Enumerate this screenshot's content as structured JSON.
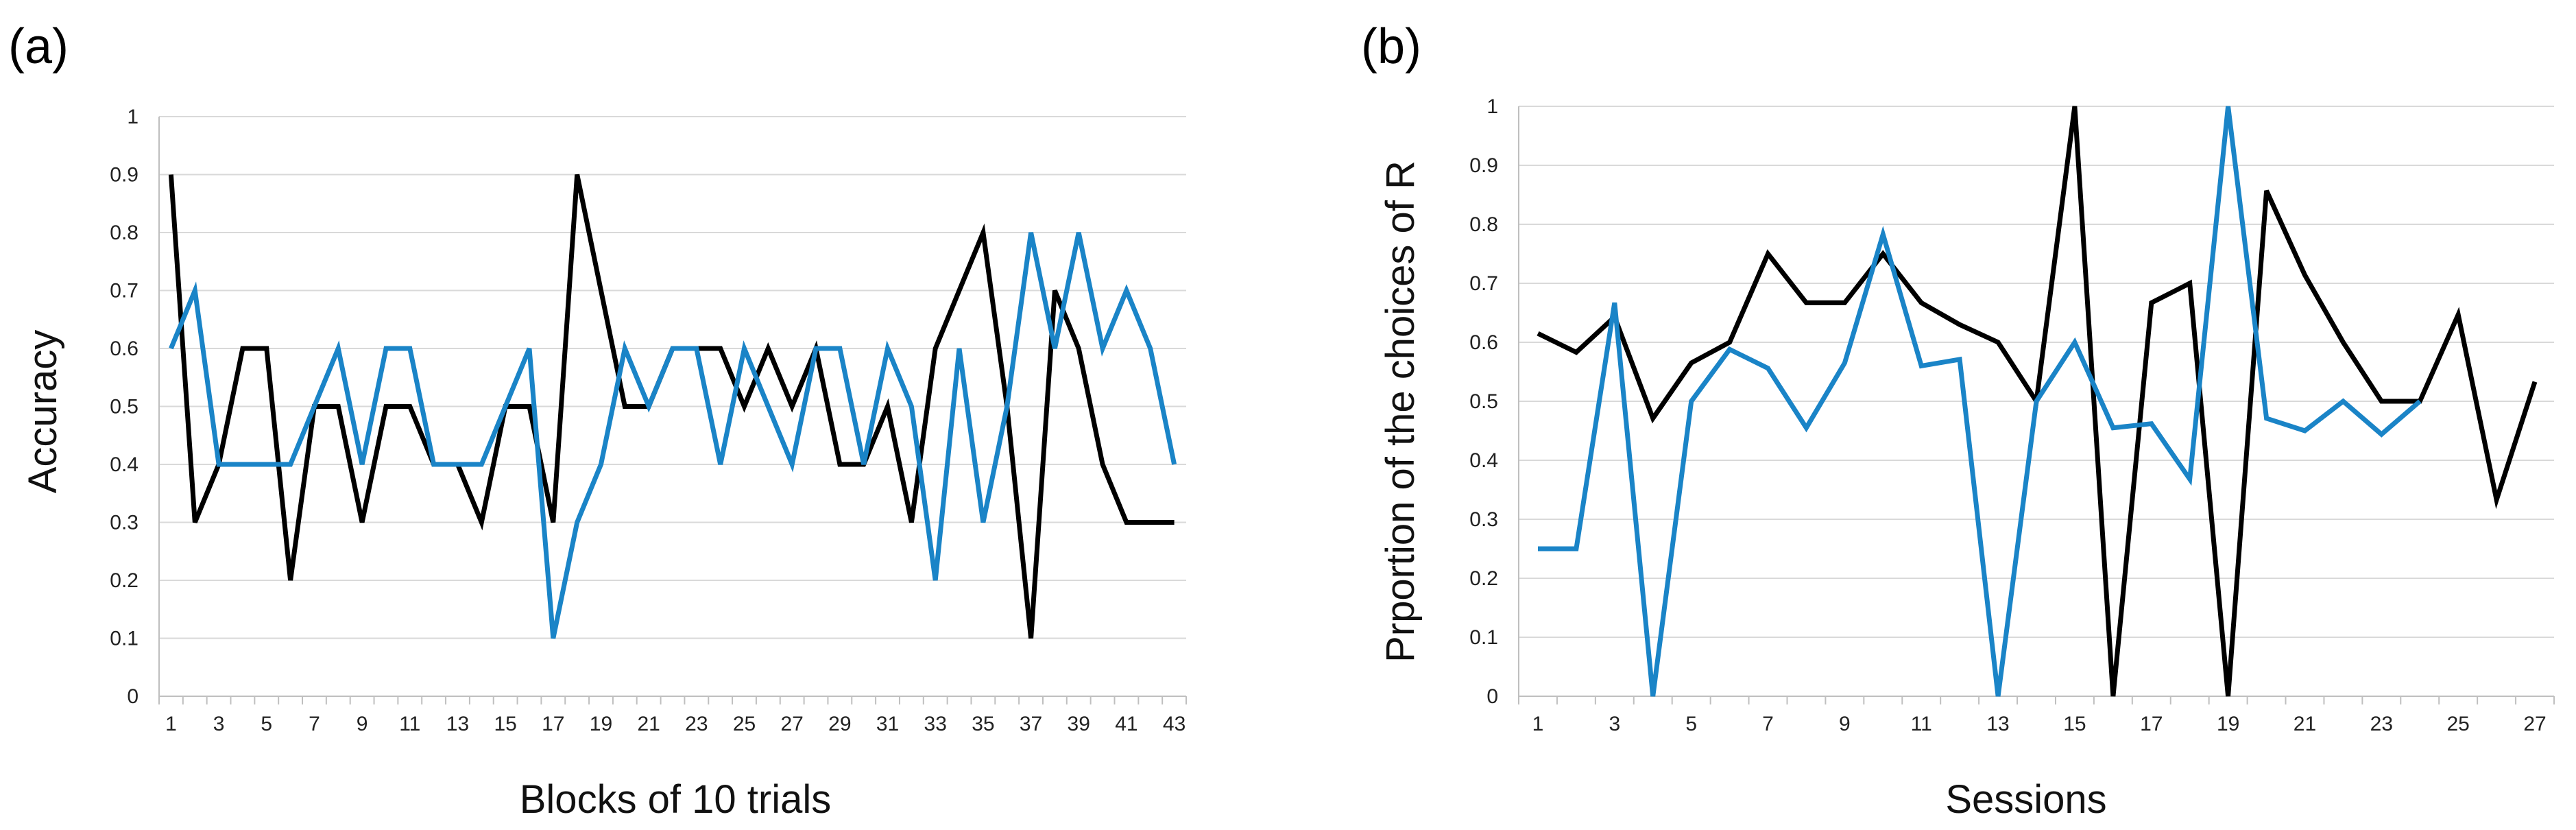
{
  "charts_meta": {
    "black_color": "#000000",
    "blue_color": "#1a84c7"
  },
  "chart_data": [
    {
      "type": "line",
      "panel_label": "(a)",
      "title": "",
      "xlabel": "Blocks of 10 trials",
      "ylabel": "Accuracy",
      "ylim": [
        0,
        1
      ],
      "yticks": [
        "0",
        "0.1",
        "0.2",
        "0.3",
        "0.4",
        "0.5",
        "0.6",
        "0.7",
        "0.8",
        "0.9",
        "1"
      ],
      "x": [
        1,
        2,
        3,
        4,
        5,
        6,
        7,
        8,
        9,
        10,
        11,
        12,
        13,
        14,
        15,
        16,
        17,
        18,
        19,
        20,
        21,
        22,
        23,
        24,
        25,
        26,
        27,
        28,
        29,
        30,
        31,
        32,
        33,
        34,
        35,
        36,
        37,
        38,
        39,
        40,
        41,
        42,
        43
      ],
      "xtick_labels": [
        "1",
        "3",
        "5",
        "7",
        "9",
        "11",
        "13",
        "15",
        "17",
        "19",
        "21",
        "23",
        "25",
        "27",
        "29",
        "31",
        "33",
        "35",
        "37",
        "39",
        "41",
        "43"
      ],
      "grid": true,
      "series": [
        {
          "name": "black",
          "color": "#000000",
          "values": [
            0.9,
            0.3,
            0.4,
            0.6,
            0.6,
            0.2,
            0.5,
            0.5,
            0.3,
            0.5,
            0.5,
            0.4,
            0.4,
            0.3,
            0.5,
            0.5,
            0.3,
            0.9,
            0.7,
            0.5,
            0.5,
            0.6,
            0.6,
            0.6,
            0.5,
            0.6,
            0.5,
            0.6,
            0.4,
            0.4,
            0.5,
            0.3,
            0.6,
            0.7,
            0.8,
            0.5,
            0.1,
            0.7,
            0.6,
            0.4,
            0.3,
            0.3,
            0.3
          ]
        },
        {
          "name": "blue",
          "color": "#1a84c7",
          "values": [
            0.6,
            0.7,
            0.4,
            0.4,
            0.4,
            0.4,
            0.5,
            0.6,
            0.4,
            0.6,
            0.6,
            0.4,
            0.4,
            0.4,
            0.5,
            0.6,
            0.1,
            0.3,
            0.4,
            0.6,
            0.5,
            0.6,
            0.6,
            0.4,
            0.6,
            0.5,
            0.4,
            0.6,
            0.6,
            0.4,
            0.6,
            0.5,
            0.2,
            0.6,
            0.3,
            0.5,
            0.8,
            0.6,
            0.8,
            0.6,
            0.7,
            0.6,
            0.4
          ]
        }
      ]
    },
    {
      "type": "line",
      "panel_label": "(b)",
      "title": "",
      "xlabel": "Sessions",
      "ylabel": "Prportion of the choices of R",
      "ylim": [
        0,
        1
      ],
      "yticks": [
        "0",
        "0.1",
        "0.2",
        "0.3",
        "0.4",
        "0.5",
        "0.6",
        "0.7",
        "0.8",
        "0.9",
        "1"
      ],
      "x": [
        1,
        2,
        3,
        4,
        5,
        6,
        7,
        8,
        9,
        10,
        11,
        12,
        13,
        14,
        15,
        16,
        17,
        18,
        19,
        20,
        21,
        22,
        23,
        24,
        25,
        26,
        27
      ],
      "xtick_labels": [
        "1",
        "3",
        "5",
        "7",
        "9",
        "11",
        "13",
        "15",
        "17",
        "19",
        "21",
        "23",
        "25",
        "27"
      ],
      "grid": true,
      "series": [
        {
          "name": "black",
          "color": "#000000",
          "values": [
            0.615,
            0.583,
            0.643,
            0.471,
            0.565,
            0.6,
            0.75,
            0.667,
            0.667,
            0.75,
            0.667,
            0.63,
            0.6,
            0.5,
            1.0,
            0.0,
            0.667,
            0.7,
            0.0,
            0.857,
            0.714,
            0.6,
            0.5,
            0.5,
            0.647,
            0.333,
            0.533
          ]
        },
        {
          "name": "blue",
          "color": "#1a84c7",
          "values": [
            0.25,
            0.25,
            0.667,
            0.0,
            0.5,
            0.588,
            0.556,
            0.455,
            0.565,
            0.783,
            0.56,
            0.571,
            0.0,
            0.5,
            0.6,
            0.455,
            0.462,
            0.368,
            1.0,
            0.471,
            0.45,
            0.5,
            0.444,
            0.5,
            null,
            null,
            null
          ]
        }
      ]
    }
  ]
}
